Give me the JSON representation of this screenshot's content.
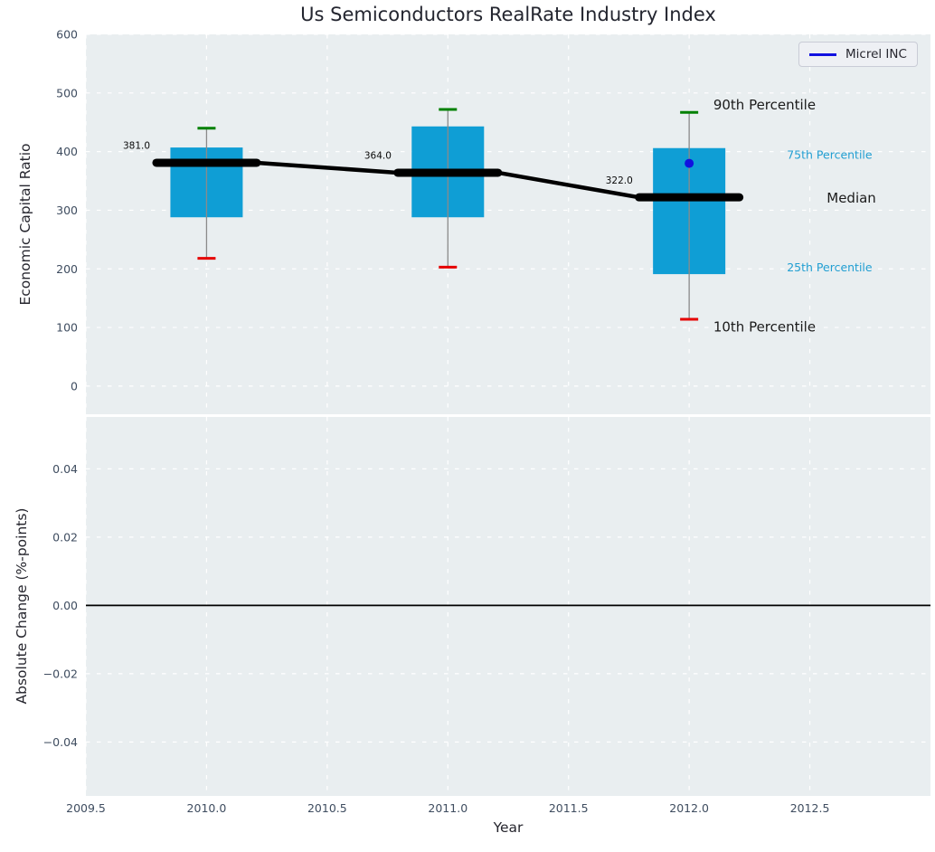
{
  "chart_data": {
    "type": "box",
    "title": "Us Semiconductors RealRate Industry Index",
    "xlabel": "Year",
    "legend": {
      "label": "Micrel INC",
      "color": "#1111e0"
    },
    "xlim": [
      2009.5,
      2013.0
    ],
    "xticks": [
      2009.5,
      2010.0,
      2010.5,
      2011.0,
      2011.5,
      2012.0,
      2012.5
    ],
    "xtick_labels": [
      "2009.5",
      "2010.0",
      "2010.5",
      "2011.0",
      "2011.5",
      "2012.0",
      "2012.5"
    ],
    "grid": "white dashed on light panel background",
    "legend_position": "upper right",
    "top": {
      "ylabel": "Economic Capital Ratio",
      "ylim": [
        -48,
        600
      ],
      "yticks": [
        600,
        500,
        400,
        300,
        200,
        100,
        0
      ],
      "ytick_labels": [
        "600",
        "500",
        "400",
        "300",
        "200",
        "100",
        "0"
      ],
      "boxes": [
        {
          "year": 2010,
          "p90": 440,
          "q3": 407,
          "median": 381,
          "q1": 288,
          "p10": 218,
          "label": "381.0"
        },
        {
          "year": 2011,
          "p90": 472,
          "q3": 443,
          "median": 364,
          "q1": 288,
          "p10": 203,
          "label": "364.0"
        },
        {
          "year": 2012,
          "p90": 467,
          "q3": 406,
          "median": 322,
          "q1": 191,
          "p10": 114,
          "label": "322.0"
        }
      ],
      "point": {
        "series": "Micrel INC",
        "year": 2012,
        "value": 380
      },
      "annotations": [
        {
          "text": "90th Percentile",
          "year": 2012.1,
          "value": 480,
          "color": "#1b1b1b",
          "size": 15
        },
        {
          "text": "75th Percentile",
          "year": 2012.405,
          "value": 395,
          "color": "#229fd2",
          "size": 12.5
        },
        {
          "text": "Median",
          "year": 2012.57,
          "value": 321,
          "color": "#1b1b1b",
          "size": 15
        },
        {
          "text": "25th Percentile",
          "year": 2012.405,
          "value": 203,
          "color": "#229fd2",
          "size": 12.5
        },
        {
          "text": "10th Percentile",
          "year": 2012.1,
          "value": 101,
          "color": "#1b1b1b",
          "size": 15
        }
      ]
    },
    "bottom": {
      "ylabel": "Absolute Change (%-points)",
      "ylim": [
        -0.0558,
        0.0552
      ],
      "yticks": [
        0.04,
        0.02,
        0.0,
        -0.02,
        -0.04
      ],
      "ytick_labels": [
        "0.04",
        "0.02",
        "0.00",
        "−0.02",
        "−0.04"
      ],
      "zero_line": 0.0
    },
    "colors": {
      "panel_bg": "#e9eef0",
      "grid": "#ffffff",
      "box_fill": "#0f9ed5",
      "whisker": "#8a8a8a",
      "p90_cap": "#008000",
      "p10_cap": "#e50000",
      "median_line": "#000000",
      "point": "#1111e0",
      "zero_line": "#000000"
    }
  }
}
